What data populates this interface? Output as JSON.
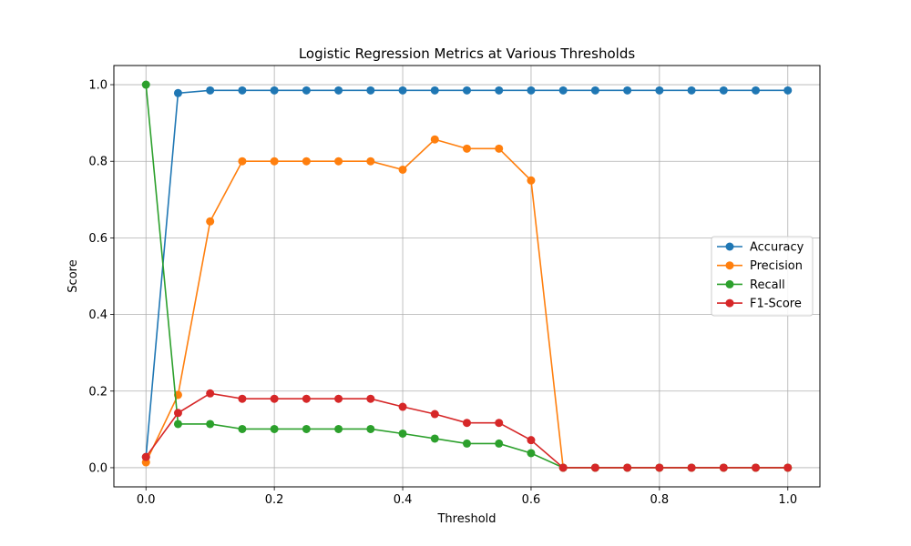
{
  "chart_data": {
    "type": "line",
    "title": "Logistic Regression Metrics at Various Thresholds",
    "xlabel": "Threshold",
    "ylabel": "Score",
    "xlim": [
      -0.05,
      1.05
    ],
    "ylim": [
      -0.05,
      1.05
    ],
    "xticks": [
      "0.0",
      "0.2",
      "0.4",
      "0.6",
      "0.8",
      "1.0"
    ],
    "xtick_values": [
      0.0,
      0.2,
      0.4,
      0.6,
      0.8,
      1.0
    ],
    "yticks": [
      "0.0",
      "0.2",
      "0.4",
      "0.6",
      "0.8",
      "1.0"
    ],
    "ytick_values": [
      0.0,
      0.2,
      0.4,
      0.6,
      0.8,
      1.0
    ],
    "grid": true,
    "legend_position": "center-right",
    "x": [
      0.0,
      0.05,
      0.1,
      0.15,
      0.2,
      0.25,
      0.3,
      0.35,
      0.4,
      0.45,
      0.5,
      0.55,
      0.6,
      0.65,
      0.7,
      0.75,
      0.8,
      0.85,
      0.9,
      0.95,
      1.0
    ],
    "series": [
      {
        "name": "Accuracy",
        "color": "#1f77b4",
        "values": [
          0.028,
          0.978,
          0.985,
          0.985,
          0.985,
          0.985,
          0.985,
          0.985,
          0.985,
          0.985,
          0.985,
          0.985,
          0.985,
          0.985,
          0.985,
          0.985,
          0.985,
          0.985,
          0.985,
          0.985,
          0.985
        ]
      },
      {
        "name": "Precision",
        "color": "#ff7f0e",
        "values": [
          0.014,
          0.19,
          0.643,
          0.8,
          0.8,
          0.8,
          0.8,
          0.8,
          0.778,
          0.857,
          0.833,
          0.833,
          0.75,
          0.0,
          0.0,
          0.0,
          0.0,
          0.0,
          0.0,
          0.0,
          0.0
        ]
      },
      {
        "name": "Recall",
        "color": "#2ca02c",
        "values": [
          1.0,
          0.114,
          0.114,
          0.101,
          0.101,
          0.101,
          0.101,
          0.101,
          0.089,
          0.076,
          0.063,
          0.063,
          0.038,
          0.0,
          0.0,
          0.0,
          0.0,
          0.0,
          0.0,
          0.0,
          0.0
        ]
      },
      {
        "name": "F1-Score",
        "color": "#d62728",
        "values": [
          0.028,
          0.143,
          0.194,
          0.18,
          0.18,
          0.18,
          0.18,
          0.18,
          0.159,
          0.14,
          0.117,
          0.117,
          0.072,
          0.0,
          0.0,
          0.0,
          0.0,
          0.0,
          0.0,
          0.0,
          0.0
        ]
      }
    ]
  }
}
